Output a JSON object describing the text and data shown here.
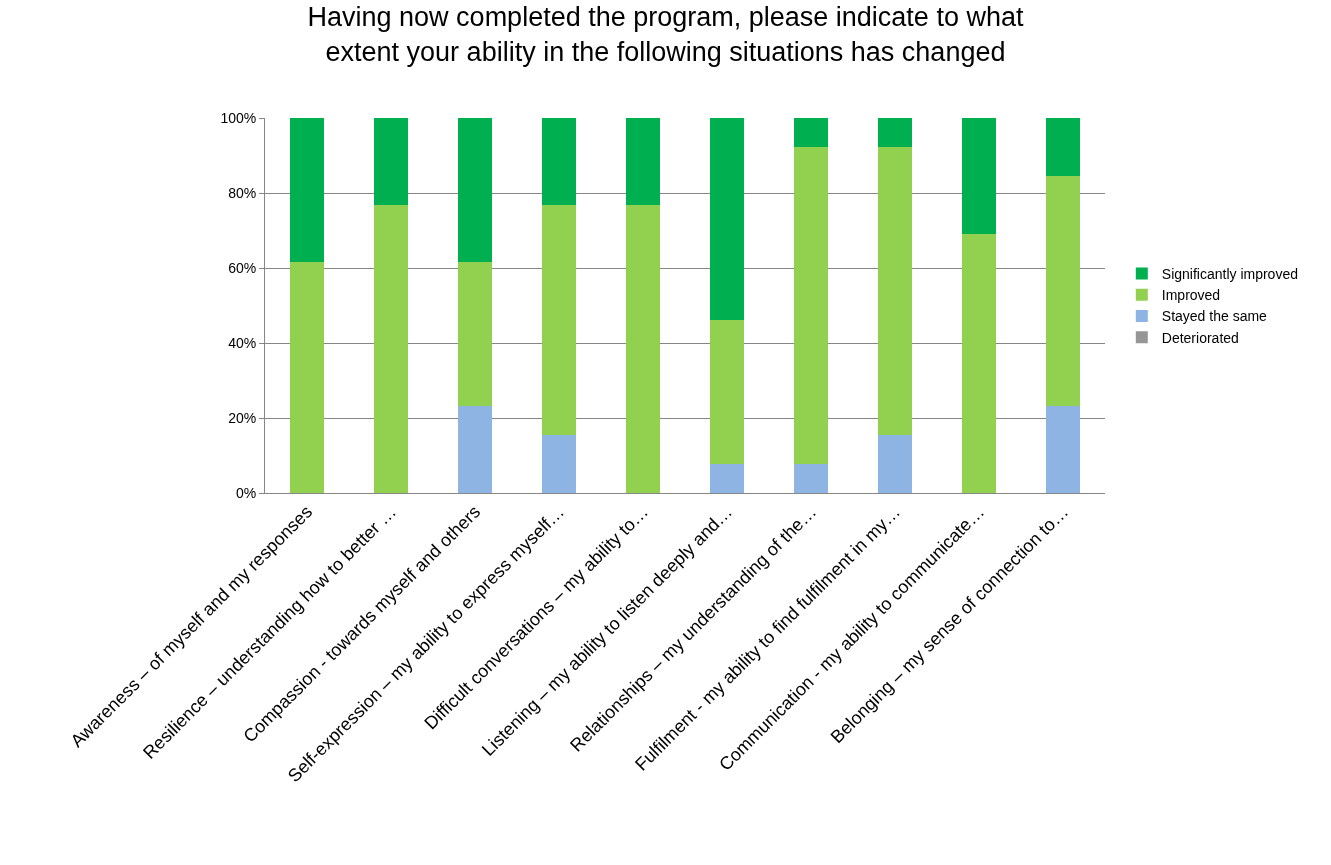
{
  "chart_data": {
    "type": "bar",
    "title": "Having now completed the program, please indicate to what extent your ability in the following situations has changed",
    "categories": [
      "Awareness – of myself and my responses",
      "Resilience – understanding how to better …",
      "Compassion - towards myself and others",
      "Self-expression – my ability to express myself…",
      "Difficult conversations – my ability to…",
      "Listening – my ability to listen deeply and…",
      "Relationships – my understanding of the…",
      "Fulfilment - my ability to find fulfilment in my…",
      "Communication - my ability to communicate…",
      "Belonging – my sense of connection to…"
    ],
    "stacked": true,
    "series": [
      {
        "name": "Deteriorated",
        "color": "#969696",
        "values": [
          0,
          0,
          0,
          0,
          0,
          0,
          0,
          0,
          0,
          0
        ]
      },
      {
        "name": "Stayed the same",
        "color": "#8db4e2",
        "values": [
          0,
          0,
          23.1,
          15.4,
          0,
          7.7,
          7.7,
          15.4,
          0,
          23.1
        ]
      },
      {
        "name": "Improved",
        "color": "#92d050",
        "values": [
          61.5,
          76.9,
          38.5,
          61.5,
          76.9,
          38.5,
          84.6,
          76.9,
          69.2,
          61.5
        ]
      },
      {
        "name": "Significantly improved",
        "color": "#00b050",
        "values": [
          38.5,
          23.1,
          38.5,
          23.1,
          23.1,
          53.8,
          7.7,
          7.7,
          30.8,
          15.4
        ]
      }
    ],
    "ylim": [
      0,
      100
    ],
    "yticks": [
      {
        "value": 0,
        "label": "0%"
      },
      {
        "value": 20,
        "label": "20%"
      },
      {
        "value": 40,
        "label": "40%"
      },
      {
        "value": 60,
        "label": "60%"
      },
      {
        "value": 80,
        "label": "80%"
      },
      {
        "value": 100,
        "label": "100%"
      }
    ],
    "grid": "y",
    "legend": "right"
  }
}
